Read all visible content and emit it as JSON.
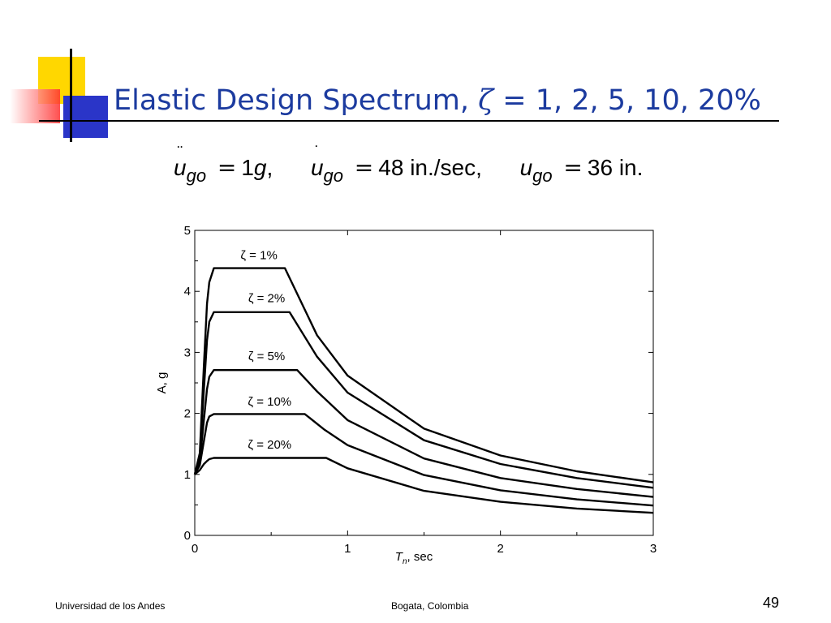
{
  "slide": {
    "title_prefix": "Elastic Design Spectrum, ",
    "title_symbol": "ζ",
    "title_suffix": " = 1, 2, 5, 10, 20%",
    "footer_left": "Universidad de los Andes",
    "footer_center": "Bogata, Colombia",
    "page_number": "49"
  },
  "formula": {
    "accel_var": "u",
    "accel_dots": "¨",
    "accel_sub": "go",
    "accel_value": "1",
    "accel_unit": "g",
    "vel_var": "u",
    "vel_dot": "˙",
    "vel_sub": "go",
    "vel_value": "48",
    "vel_unit": "in./sec,",
    "disp_var": "u",
    "disp_sub": "go",
    "disp_value": "36",
    "disp_unit": "in.",
    "equals": "=",
    "comma": ","
  },
  "colors": {
    "title": "#1c3b9f",
    "deco_yellow": "#ffd700",
    "deco_red": "#ff4040",
    "deco_blue": "#2a35c8"
  },
  "chart_data": {
    "type": "line",
    "title": "",
    "xlabel_var": "T",
    "xlabel_sub": "n",
    "xlabel_rest": ", sec",
    "ylabel": "A, g",
    "xlim": [
      0,
      3
    ],
    "ylim": [
      0,
      5
    ],
    "xticks": [
      0,
      1,
      2,
      3
    ],
    "yticks": [
      0,
      1,
      2,
      3,
      4,
      5
    ],
    "grid": false,
    "series": [
      {
        "name": "ζ = 1%",
        "x": [
          0,
          0.033,
          0.06,
          0.08,
          0.095,
          0.125,
          0.59,
          0.8,
          1.0,
          1.5,
          2.0,
          2.5,
          3.0
        ],
        "y": [
          1.0,
          1.35,
          2.8,
          3.8,
          4.15,
          4.38,
          4.38,
          3.28,
          2.62,
          1.75,
          1.31,
          1.05,
          0.87
        ]
      },
      {
        "name": "ζ = 2%",
        "x": [
          0,
          0.033,
          0.06,
          0.08,
          0.095,
          0.125,
          0.62,
          0.8,
          1.0,
          1.5,
          2.0,
          2.5,
          3.0
        ],
        "y": [
          1.0,
          1.3,
          2.4,
          3.2,
          3.5,
          3.66,
          3.66,
          2.93,
          2.34,
          1.56,
          1.17,
          0.94,
          0.78
        ]
      },
      {
        "name": "ζ = 5%",
        "x": [
          0,
          0.033,
          0.06,
          0.08,
          0.095,
          0.125,
          0.67,
          0.8,
          1.0,
          1.5,
          2.0,
          2.5,
          3.0
        ],
        "y": [
          1.0,
          1.2,
          1.9,
          2.4,
          2.6,
          2.71,
          2.71,
          2.36,
          1.89,
          1.26,
          0.94,
          0.76,
          0.63
        ]
      },
      {
        "name": "ζ = 10%",
        "x": [
          0,
          0.033,
          0.06,
          0.08,
          0.095,
          0.125,
          0.72,
          0.85,
          1.0,
          1.5,
          2.0,
          2.5,
          3.0
        ],
        "y": [
          1.0,
          1.15,
          1.55,
          1.85,
          1.95,
          1.99,
          1.99,
          1.73,
          1.48,
          0.99,
          0.74,
          0.59,
          0.49
        ]
      },
      {
        "name": "ζ = 20%",
        "x": [
          0,
          0.033,
          0.06,
          0.08,
          0.095,
          0.125,
          0.86,
          1.0,
          1.5,
          2.0,
          2.5,
          3.0
        ],
        "y": [
          1.0,
          1.07,
          1.17,
          1.22,
          1.25,
          1.27,
          1.27,
          1.1,
          0.73,
          0.55,
          0.44,
          0.37
        ]
      }
    ],
    "labels": [
      {
        "text": "ζ = 1%",
        "x": 0.42,
        "y": 4.53
      },
      {
        "text": "ζ = 2%",
        "x": 0.47,
        "y": 3.82
      },
      {
        "text": "ζ = 5%",
        "x": 0.47,
        "y": 2.87
      },
      {
        "text": "ζ = 10%",
        "x": 0.49,
        "y": 2.13
      },
      {
        "text": "ζ = 20%",
        "x": 0.49,
        "y": 1.42
      }
    ]
  }
}
